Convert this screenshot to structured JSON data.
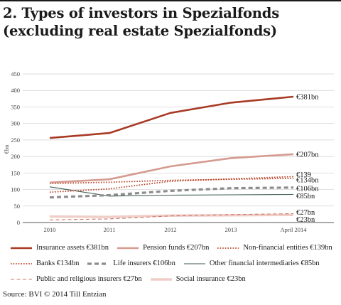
{
  "title": {
    "line1": "2. Types of investors in Spezialfonds",
    "line2": "(excluding real estate Spezialfonds)"
  },
  "source": "Source: BVI © 2014 Till Entzian",
  "colors": {
    "insurance": "#a83a24",
    "pension": "#d59a90",
    "nonfin": "#b8472e",
    "banks": "#b8472e",
    "life": "#8d8d8d",
    "other": "#3d5a52",
    "public": "#c97a6a",
    "social": "#f0cdc7"
  },
  "chart_data": {
    "type": "line",
    "ylabel": "€bn",
    "xlabel": "",
    "categories": [
      "2010",
      "2011",
      "2012",
      "2013",
      "April 2014"
    ],
    "ylim": [
      0,
      450
    ],
    "yticks": [
      0,
      50,
      100,
      150,
      200,
      250,
      300,
      350,
      400,
      450
    ],
    "grid": true,
    "legend_position": "bottom",
    "series": [
      {
        "key": "insurance",
        "name": "Insurance assets €381bn",
        "end_label": "€381bn",
        "values": [
          256,
          271,
          332,
          363,
          381
        ]
      },
      {
        "key": "pension",
        "name": "Pension funds €207bn",
        "end_label": "€207bn",
        "values": [
          121,
          131,
          170,
          195,
          207
        ]
      },
      {
        "key": "nonfin",
        "name": "Non-financial entities €139bn",
        "end_label": "€139",
        "values": [
          92,
          102,
          125,
          132,
          139
        ]
      },
      {
        "key": "banks",
        "name": "Banks €134bn",
        "end_label": "€134bn",
        "values": [
          118,
          122,
          128,
          131,
          134
        ]
      },
      {
        "key": "life",
        "name": "Life insurers €106bn",
        "end_label": "€106bn",
        "values": [
          76,
          83,
          96,
          104,
          106
        ]
      },
      {
        "key": "other",
        "name": "Other financial intermediaries €85bn",
        "end_label": "€85bn",
        "values": [
          108,
          80,
          83,
          84,
          85
        ]
      },
      {
        "key": "public",
        "name": "Public and religious insurers €27bn",
        "end_label": "€27bn",
        "values": [
          8,
          11,
          20,
          24,
          27
        ]
      },
      {
        "key": "social",
        "name": "Social insurance €23bn",
        "end_label": "€23bn",
        "values": [
          18,
          17,
          21,
          22,
          23
        ]
      }
    ]
  }
}
